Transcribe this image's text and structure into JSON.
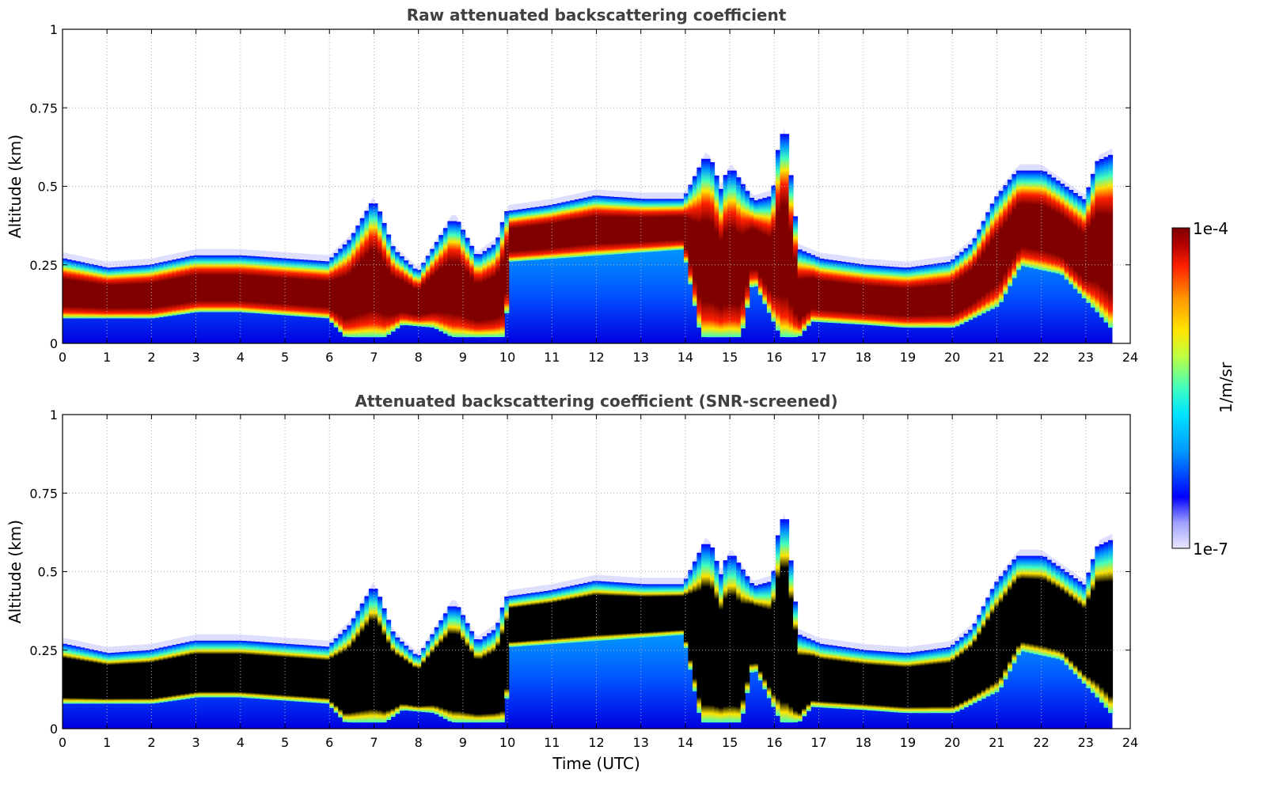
{
  "chart_data": [
    {
      "type": "heatmap",
      "title": "Raw attenuated backscattering coefficient",
      "xlabel": "",
      "ylabel": "Altitude (km)",
      "xlim": [
        0,
        24
      ],
      "ylim": [
        0,
        1
      ],
      "xticks": [
        0,
        1,
        2,
        3,
        4,
        5,
        6,
        7,
        8,
        9,
        10,
        11,
        12,
        13,
        14,
        15,
        16,
        17,
        18,
        19,
        20,
        21,
        22,
        23,
        24
      ],
      "yticks": [
        0,
        0.25,
        0.5,
        0.75,
        1
      ],
      "ytick_labels": [
        "0",
        "0.25",
        "0.5",
        "0.75",
        "1"
      ],
      "grid": true,
      "screened_black": false,
      "cloud_base_km": [
        [
          0,
          0.08
        ],
        [
          1,
          0.08
        ],
        [
          2,
          0.08
        ],
        [
          3,
          0.1
        ],
        [
          4,
          0.1
        ],
        [
          5,
          0.09
        ],
        [
          6,
          0.08
        ],
        [
          6.4,
          0.02
        ],
        [
          7.2,
          0.02
        ],
        [
          7.6,
          0.06
        ],
        [
          8.4,
          0.05
        ],
        [
          8.8,
          0.02
        ],
        [
          9.9,
          0.02
        ],
        [
          10,
          0.26
        ],
        [
          12,
          0.28
        ],
        [
          14,
          0.3
        ],
        [
          14.4,
          0.02
        ],
        [
          15.2,
          0.02
        ],
        [
          15.5,
          0.22
        ],
        [
          16.2,
          0.02
        ],
        [
          16.5,
          0.02
        ],
        [
          16.8,
          0.07
        ],
        [
          18,
          0.06
        ],
        [
          19,
          0.05
        ],
        [
          20,
          0.05
        ],
        [
          21,
          0.12
        ],
        [
          21.5,
          0.25
        ],
        [
          22.5,
          0.22
        ],
        [
          23.3,
          0.1
        ],
        [
          23.6,
          0.05
        ]
      ],
      "cloud_top_km": [
        [
          0,
          0.27
        ],
        [
          1,
          0.24
        ],
        [
          2,
          0.25
        ],
        [
          3,
          0.28
        ],
        [
          4,
          0.28
        ],
        [
          5,
          0.27
        ],
        [
          6,
          0.26
        ],
        [
          6.5,
          0.33
        ],
        [
          7,
          0.45
        ],
        [
          7.4,
          0.3
        ],
        [
          8,
          0.22
        ],
        [
          8.8,
          0.4
        ],
        [
          9.3,
          0.27
        ],
        [
          9.8,
          0.32
        ],
        [
          10,
          0.42
        ],
        [
          11,
          0.44
        ],
        [
          12,
          0.47
        ],
        [
          13,
          0.46
        ],
        [
          14,
          0.46
        ],
        [
          14.5,
          0.6
        ],
        [
          14.8,
          0.47
        ],
        [
          15,
          0.56
        ],
        [
          15.5,
          0.45
        ],
        [
          16,
          0.47
        ],
        [
          16.2,
          0.7
        ],
        [
          16.5,
          0.3
        ],
        [
          17,
          0.27
        ],
        [
          18,
          0.25
        ],
        [
          19,
          0.24
        ],
        [
          20,
          0.26
        ],
        [
          20.5,
          0.32
        ],
        [
          21,
          0.46
        ],
        [
          21.5,
          0.55
        ],
        [
          22,
          0.55
        ],
        [
          22.5,
          0.5
        ],
        [
          23,
          0.45
        ],
        [
          23.3,
          0.58
        ],
        [
          23.6,
          0.6
        ]
      ]
    },
    {
      "type": "heatmap",
      "title": "Attenuated backscattering coefficient (SNR-screened)",
      "xlabel": "Time (UTC)",
      "ylabel": "Altitude (km)",
      "xlim": [
        0,
        24
      ],
      "ylim": [
        0,
        1
      ],
      "xticks": [
        0,
        1,
        2,
        3,
        4,
        5,
        6,
        7,
        8,
        9,
        10,
        11,
        12,
        13,
        14,
        15,
        16,
        17,
        18,
        19,
        20,
        21,
        22,
        23,
        24
      ],
      "yticks": [
        0,
        0.25,
        0.5,
        0.75,
        1
      ],
      "ytick_labels": [
        "0",
        "0.25",
        "0.5",
        "0.75",
        "1"
      ],
      "grid": true,
      "screened_black": true,
      "cloud_base_km": [
        [
          0,
          0.08
        ],
        [
          1,
          0.08
        ],
        [
          2,
          0.08
        ],
        [
          3,
          0.1
        ],
        [
          4,
          0.1
        ],
        [
          5,
          0.09
        ],
        [
          6,
          0.08
        ],
        [
          6.4,
          0.02
        ],
        [
          7.2,
          0.02
        ],
        [
          7.6,
          0.06
        ],
        [
          8.4,
          0.05
        ],
        [
          8.8,
          0.02
        ],
        [
          9.9,
          0.02
        ],
        [
          10,
          0.26
        ],
        [
          12,
          0.28
        ],
        [
          14,
          0.3
        ],
        [
          14.4,
          0.02
        ],
        [
          15.2,
          0.02
        ],
        [
          15.5,
          0.22
        ],
        [
          16.2,
          0.02
        ],
        [
          16.5,
          0.02
        ],
        [
          16.8,
          0.07
        ],
        [
          18,
          0.06
        ],
        [
          19,
          0.05
        ],
        [
          20,
          0.05
        ],
        [
          21,
          0.12
        ],
        [
          21.5,
          0.25
        ],
        [
          22.5,
          0.22
        ],
        [
          23.3,
          0.1
        ],
        [
          23.6,
          0.05
        ]
      ],
      "cloud_top_km": [
        [
          0,
          0.27
        ],
        [
          1,
          0.24
        ],
        [
          2,
          0.25
        ],
        [
          3,
          0.28
        ],
        [
          4,
          0.28
        ],
        [
          5,
          0.27
        ],
        [
          6,
          0.26
        ],
        [
          6.5,
          0.33
        ],
        [
          7,
          0.45
        ],
        [
          7.4,
          0.3
        ],
        [
          8,
          0.22
        ],
        [
          8.8,
          0.4
        ],
        [
          9.3,
          0.27
        ],
        [
          9.8,
          0.32
        ],
        [
          10,
          0.42
        ],
        [
          11,
          0.44
        ],
        [
          12,
          0.47
        ],
        [
          13,
          0.46
        ],
        [
          14,
          0.46
        ],
        [
          14.5,
          0.6
        ],
        [
          14.8,
          0.47
        ],
        [
          15,
          0.56
        ],
        [
          15.5,
          0.45
        ],
        [
          16,
          0.47
        ],
        [
          16.2,
          0.7
        ],
        [
          16.5,
          0.3
        ],
        [
          17,
          0.27
        ],
        [
          18,
          0.25
        ],
        [
          19,
          0.24
        ],
        [
          20,
          0.26
        ],
        [
          20.5,
          0.32
        ],
        [
          21,
          0.46
        ],
        [
          21.5,
          0.55
        ],
        [
          22,
          0.55
        ],
        [
          22.5,
          0.5
        ],
        [
          23,
          0.45
        ],
        [
          23.3,
          0.58
        ],
        [
          23.6,
          0.6
        ]
      ]
    }
  ],
  "colorbar": {
    "label": "1/m/sr",
    "max_label": "1e-4",
    "min_label": "1e-7",
    "scale": "log",
    "colors": [
      "#e8e8ff",
      "#a0a0ff",
      "#0000ff",
      "#0096ff",
      "#00e5ff",
      "#40ffbf",
      "#bfff40",
      "#ffe500",
      "#ff9600",
      "#ff2000",
      "#b00000",
      "#800000"
    ]
  }
}
